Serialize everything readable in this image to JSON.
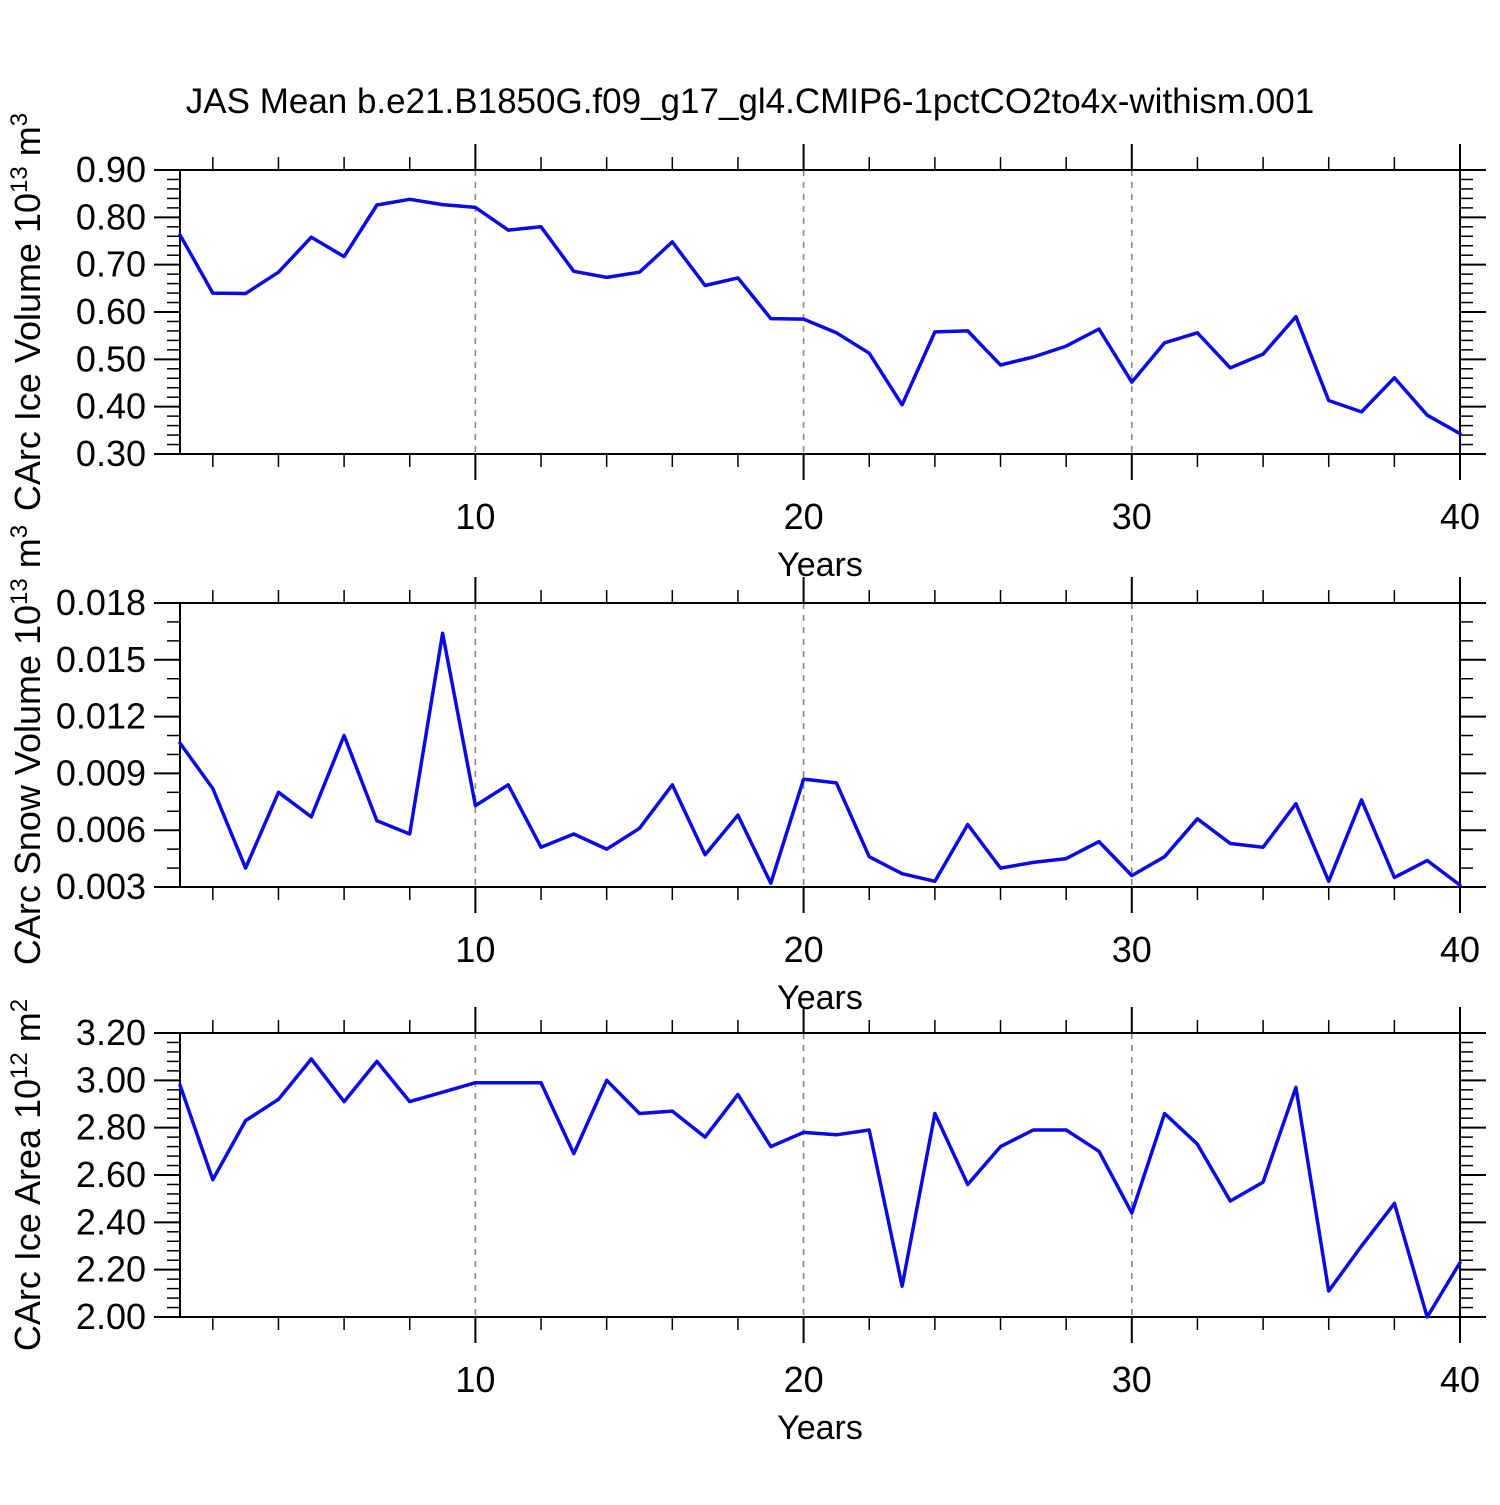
{
  "title": "JAS Mean b.e21.B1850G.f09_g17_gl4.CMIP6-1pctCO2to4x-withism.001",
  "xlabel": "Years",
  "x_axis": {
    "range": [
      1,
      40
    ],
    "major_ticks": [
      10,
      20,
      30,
      40
    ],
    "major_tick_labels": [
      "10",
      "20",
      "30",
      "40"
    ],
    "minor_tick_step": 2,
    "gridlines_at": [
      10,
      20,
      30
    ]
  },
  "style": {
    "line_color": "#0a0ae6",
    "grid_color": "#8a8a8a",
    "frame_color": "#000000",
    "background": "#ffffff"
  },
  "chart_data": [
    {
      "type": "line",
      "series_name": "CArc Ice Volume",
      "ylabel": "CArc Ice Volume 10^13 m^3",
      "ylabel_parts": [
        [
          "CArc Ice Volume 10",
          0
        ],
        [
          "13",
          1
        ],
        [
          " m",
          0
        ],
        [
          "3",
          1
        ]
      ],
      "ylim": [
        0.3,
        0.9
      ],
      "ytick_values": [
        0.3,
        0.4,
        0.5,
        0.6,
        0.7,
        0.8,
        0.9
      ],
      "ytick_labels": [
        "0.30",
        "0.40",
        "0.50",
        "0.60",
        "0.70",
        "0.80",
        "0.90"
      ],
      "yminor_step": 0.02,
      "xlabel": "Years",
      "x": [
        1,
        2,
        3,
        4,
        5,
        6,
        7,
        8,
        9,
        10,
        11,
        12,
        13,
        14,
        15,
        16,
        17,
        18,
        19,
        20,
        21,
        22,
        23,
        24,
        25,
        26,
        27,
        28,
        29,
        30,
        31,
        32,
        33,
        34,
        35,
        36,
        37,
        38,
        39,
        40
      ],
      "values": [
        0.763,
        0.64,
        0.639,
        0.684,
        0.758,
        0.717,
        0.826,
        0.838,
        0.827,
        0.821,
        0.773,
        0.78,
        0.686,
        0.673,
        0.684,
        0.748,
        0.656,
        0.672,
        0.586,
        0.585,
        0.556,
        0.513,
        0.404,
        0.558,
        0.56,
        0.488,
        0.505,
        0.528,
        0.564,
        0.452,
        0.535,
        0.556,
        0.482,
        0.511,
        0.59,
        0.413,
        0.389,
        0.461,
        0.382,
        0.343
      ]
    },
    {
      "type": "line",
      "series_name": "CArc Snow Volume",
      "ylabel": "CArc Snow Volume 10^13 m^3",
      "ylabel_parts": [
        [
          "CArc Snow Volume 10",
          0
        ],
        [
          "13",
          1
        ],
        [
          " m",
          0
        ],
        [
          "3",
          1
        ]
      ],
      "ylim": [
        0.003,
        0.018
      ],
      "ytick_values": [
        0.003,
        0.006,
        0.009,
        0.012,
        0.015,
        0.018
      ],
      "ytick_labels": [
        "0.003",
        "0.006",
        "0.009",
        "0.012",
        "0.015",
        "0.018"
      ],
      "yminor_step": 0.001,
      "xlabel": "Years",
      "x": [
        1,
        2,
        3,
        4,
        5,
        6,
        7,
        8,
        9,
        10,
        11,
        12,
        13,
        14,
        15,
        16,
        17,
        18,
        19,
        20,
        21,
        22,
        23,
        24,
        25,
        26,
        27,
        28,
        29,
        30,
        31,
        32,
        33,
        34,
        35,
        36,
        37,
        38,
        39,
        40
      ],
      "values": [
        0.0106,
        0.0082,
        0.004,
        0.008,
        0.0067,
        0.011,
        0.0065,
        0.0058,
        0.0164,
        0.0073,
        0.0084,
        0.0051,
        0.0058,
        0.005,
        0.0061,
        0.0084,
        0.0047,
        0.0068,
        0.0032,
        0.0087,
        0.0085,
        0.0046,
        0.0037,
        0.0033,
        0.0063,
        0.004,
        0.0043,
        0.0045,
        0.0054,
        0.0036,
        0.0046,
        0.0066,
        0.0053,
        0.0051,
        0.0074,
        0.0033,
        0.0076,
        0.0035,
        0.0044,
        0.0031
      ]
    },
    {
      "type": "line",
      "series_name": "CArc Ice Area",
      "ylabel": "CArc Ice Area 10^12 m^2",
      "ylabel_parts": [
        [
          "CArc Ice Area 10",
          0
        ],
        [
          "12",
          1
        ],
        [
          " m",
          0
        ],
        [
          "2",
          1
        ]
      ],
      "ylim": [
        2.0,
        3.2
      ],
      "ytick_values": [
        2.0,
        2.2,
        2.4,
        2.6,
        2.8,
        3.0,
        3.2
      ],
      "ytick_labels": [
        "2.00",
        "2.20",
        "2.40",
        "2.60",
        "2.80",
        "3.00",
        "3.20"
      ],
      "yminor_step": 0.04,
      "xlabel": "Years",
      "x": [
        1,
        2,
        3,
        4,
        5,
        6,
        7,
        8,
        9,
        10,
        11,
        12,
        13,
        14,
        15,
        16,
        17,
        18,
        19,
        20,
        21,
        22,
        23,
        24,
        25,
        26,
        27,
        28,
        29,
        30,
        31,
        32,
        33,
        34,
        35,
        36,
        37,
        38,
        39,
        40
      ],
      "values": [
        2.98,
        2.58,
        2.83,
        2.92,
        3.09,
        2.91,
        3.08,
        2.91,
        2.95,
        2.99,
        2.99,
        2.99,
        2.69,
        3.0,
        2.86,
        2.87,
        2.76,
        2.94,
        2.72,
        2.78,
        2.77,
        2.79,
        2.13,
        2.86,
        2.56,
        2.72,
        2.79,
        2.79,
        2.7,
        2.44,
        2.86,
        2.73,
        2.49,
        2.57,
        2.97,
        2.11,
        2.3,
        2.48,
        2.0,
        2.23
      ]
    }
  ]
}
